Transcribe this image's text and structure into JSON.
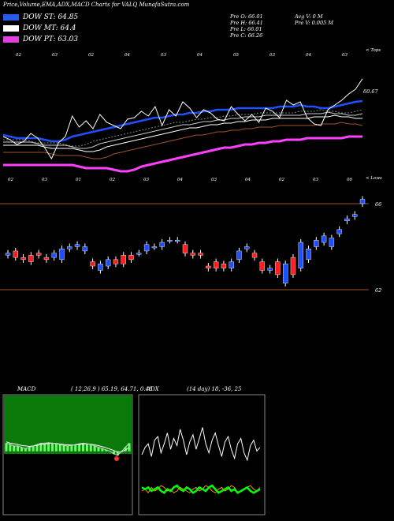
{
  "header": {
    "title": "Price,Volume,EMA,ADX,MACD Charts for VALQ MunafaSutra.com",
    "legend": [
      {
        "label": "DOW ST: 64.85",
        "color": "#3a6df0"
      },
      {
        "label": "DOW MT: 64.4",
        "color": "#ffffff"
      },
      {
        "label": "DOW PT: 63.03",
        "color": "#e040e0"
      }
    ],
    "stats": [
      "Pre  O: 66.01",
      "Pre  H: 66.41",
      "Pre  L: 66.01",
      "Pre  C: 66.26",
      "Avg V: 0  M",
      "Pre  V: 0.005 M"
    ]
  },
  "colors": {
    "st": "#1e50ff",
    "mt": "#ffffff",
    "pt": "#ff40ff",
    "brown": "#a0522d",
    "up": "#1e50ff",
    "down": "#ff1e1e",
    "green": "#00c800",
    "macd_bg": "#006400"
  },
  "chart_data": [
    {
      "type": "line",
      "title": "Price with EMA",
      "top_ticks": [
        "02",
        "03",
        "02",
        "04",
        "03",
        "04",
        "05",
        "03",
        "04",
        "03"
      ],
      "bottom_ticks": [
        "02",
        "03",
        "01",
        "02",
        "03",
        "04",
        "03",
        "04",
        "02",
        "03",
        "06"
      ],
      "top_edge_label": "< Tops",
      "bottom_edge_label": "< Lows",
      "price_label": "60.67",
      "series": [
        {
          "name": "close",
          "values": [
            62.6,
            62.4,
            62.1,
            62.3,
            62.8,
            62.5,
            61.9,
            61.2,
            62.2,
            62.6,
            63.9,
            63.2,
            63.6,
            63.1,
            64.0,
            63.5,
            63.3,
            63.1,
            63.7,
            63.8,
            64.2,
            63.9,
            64.5,
            63.3,
            64.3,
            63.9,
            64.8,
            64.4,
            63.8,
            64.3,
            64.1,
            63.7,
            63.6,
            64.5,
            64.0,
            63.6,
            64.0,
            63.5,
            64.4,
            64.2,
            63.8,
            64.9,
            64.6,
            64.8,
            63.8,
            63.4,
            63.3,
            64.3,
            64.6,
            64.9,
            65.3,
            65.6,
            66.26
          ]
        },
        {
          "name": "ema_st",
          "values": [
            62.7,
            62.6,
            62.5,
            62.5,
            62.5,
            62.5,
            62.4,
            62.3,
            62.3,
            62.4,
            62.6,
            62.7,
            62.8,
            62.9,
            63.0,
            63.1,
            63.2,
            63.3,
            63.4,
            63.5,
            63.6,
            63.7,
            63.8,
            63.8,
            63.9,
            64.0,
            64.0,
            64.1,
            64.1,
            64.2,
            64.2,
            64.3,
            64.3,
            64.3,
            64.4,
            64.4,
            64.4,
            64.4,
            64.4,
            64.4,
            64.5,
            64.5,
            64.5,
            64.6,
            64.5,
            64.5,
            64.4,
            64.4,
            64.5,
            64.6,
            64.7,
            64.8,
            64.85
          ]
        }
      ]
    },
    {
      "type": "bar",
      "title": "Candles",
      "ylabels": [
        "66",
        "62"
      ],
      "candles": [
        {
          "o": 63.6,
          "c": 63.7
        },
        {
          "o": 63.8,
          "c": 63.5
        },
        {
          "o": 63.5,
          "c": 63.4
        },
        {
          "o": 63.6,
          "c": 63.3
        },
        {
          "o": 63.7,
          "c": 63.6
        },
        {
          "o": 63.5,
          "c": 63.4
        },
        {
          "o": 63.5,
          "c": 63.7
        },
        {
          "o": 63.4,
          "c": 63.9
        },
        {
          "o": 63.9,
          "c": 64.0
        },
        {
          "o": 64.0,
          "c": 64.1
        },
        {
          "o": 63.8,
          "c": 64.0
        },
        {
          "o": 63.3,
          "c": 63.1
        },
        {
          "o": 62.9,
          "c": 63.2
        },
        {
          "o": 63.1,
          "c": 63.4
        },
        {
          "o": 63.4,
          "c": 63.2
        },
        {
          "o": 63.6,
          "c": 63.2
        },
        {
          "o": 63.6,
          "c": 63.4
        },
        {
          "o": 63.7,
          "c": 63.7
        },
        {
          "o": 63.8,
          "c": 64.1
        },
        {
          "o": 64.0,
          "c": 64.0
        },
        {
          "o": 64.0,
          "c": 64.2
        },
        {
          "o": 64.3,
          "c": 64.3
        },
        {
          "o": 64.3,
          "c": 64.3
        },
        {
          "o": 64.1,
          "c": 63.7
        },
        {
          "o": 63.7,
          "c": 63.6
        },
        {
          "o": 63.7,
          "c": 63.6
        },
        {
          "o": 63.1,
          "c": 63.0
        },
        {
          "o": 63.3,
          "c": 63.0
        },
        {
          "o": 63.2,
          "c": 63.0
        },
        {
          "o": 63.0,
          "c": 63.3
        },
        {
          "o": 63.4,
          "c": 63.8
        },
        {
          "o": 63.9,
          "c": 64.0
        },
        {
          "o": 63.7,
          "c": 63.5
        },
        {
          "o": 63.3,
          "c": 62.9
        },
        {
          "o": 62.9,
          "c": 63.0
        },
        {
          "o": 63.3,
          "c": 62.7
        },
        {
          "o": 62.3,
          "c": 63.2
        },
        {
          "o": 63.5,
          "c": 62.7
        },
        {
          "o": 63.0,
          "c": 64.2
        },
        {
          "o": 63.4,
          "c": 63.9
        },
        {
          "o": 64.0,
          "c": 64.3
        },
        {
          "o": 64.2,
          "c": 64.5
        },
        {
          "o": 64.0,
          "c": 64.4
        },
        {
          "o": 64.6,
          "c": 64.8
        },
        {
          "o": 65.2,
          "c": 65.3
        },
        {
          "o": 65.4,
          "c": 65.5
        },
        {
          "o": 66.0,
          "c": 66.2
        }
      ]
    },
    {
      "type": "line",
      "title": "MACD",
      "label": "MACD",
      "params": "( 12,26,9 ) 65.19, 64.71, 0.48",
      "series": [
        {
          "name": "macd",
          "values": [
            0.3,
            0.25,
            0.2,
            0.2,
            0.15,
            0.1,
            0.15,
            0.2,
            0.25,
            0.3,
            0.3,
            0.32,
            0.3,
            0.28,
            0.25,
            0.22,
            0.2,
            0.22,
            0.25,
            0.28,
            0.3,
            0.28,
            0.25,
            0.2,
            0.15,
            0.1,
            0.05,
            0.0,
            -0.1,
            -0.15,
            0.0,
            0.15,
            0.3
          ]
        },
        {
          "name": "signal",
          "values": [
            0.35,
            0.3,
            0.28,
            0.25,
            0.22,
            0.2,
            0.18,
            0.2,
            0.22,
            0.25,
            0.27,
            0.29,
            0.3,
            0.29,
            0.27,
            0.25,
            0.24,
            0.23,
            0.24,
            0.25,
            0.27,
            0.27,
            0.26,
            0.24,
            0.21,
            0.17,
            0.13,
            0.08,
            0.03,
            -0.03,
            -0.02,
            0.05,
            0.15
          ]
        }
      ]
    },
    {
      "type": "line",
      "title": "ADX",
      "label": "ADX",
      "params": "(14 day) 18, -36, 25",
      "series": [
        {
          "name": "di_plus_white",
          "values": [
            30,
            34,
            36,
            29,
            38,
            40,
            31,
            36,
            42,
            33,
            39,
            35,
            44,
            38,
            30,
            37,
            41,
            33,
            39,
            45,
            36,
            31,
            38,
            42,
            35,
            29,
            37,
            40,
            33,
            28,
            36,
            39,
            31,
            27,
            35,
            38,
            32,
            34
          ]
        },
        {
          "name": "adx_green",
          "values": [
            12,
            11,
            12,
            10,
            11,
            12,
            10,
            9,
            11,
            10,
            12,
            13,
            11,
            10,
            12,
            11,
            9,
            10,
            12,
            11,
            10,
            12,
            13,
            11,
            9,
            10,
            11,
            12,
            10,
            11,
            9,
            10,
            11,
            12,
            10,
            9,
            10,
            11
          ]
        },
        {
          "name": "di_minus_orange",
          "values": [
            10,
            11,
            9,
            12,
            10,
            11,
            13,
            12,
            10,
            11,
            9,
            10,
            12,
            11,
            10,
            9,
            11,
            12,
            10,
            11,
            13,
            12,
            10,
            9,
            11,
            12,
            10,
            11,
            13,
            12,
            9,
            10,
            11,
            12,
            13,
            11,
            10,
            12
          ]
        }
      ]
    }
  ]
}
